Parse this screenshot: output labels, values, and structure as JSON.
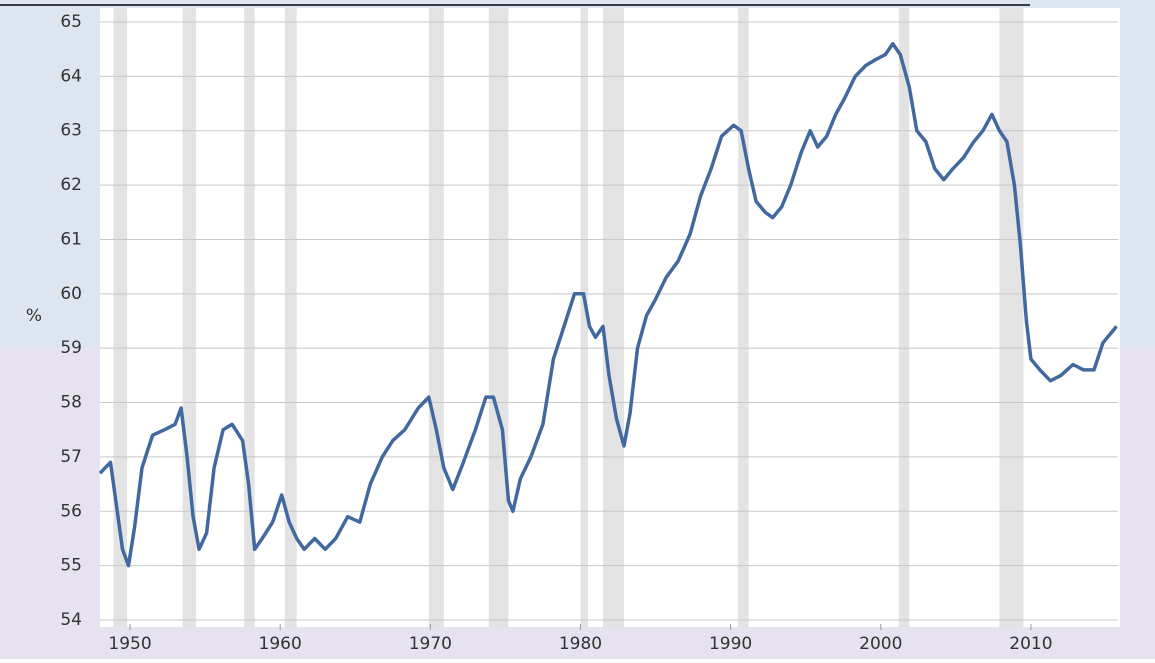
{
  "chart_data": {
    "type": "line",
    "y_label": "%",
    "xlim": [
      1948,
      2015.8
    ],
    "ylim": [
      54,
      65
    ],
    "xticks": [
      1950,
      1960,
      1970,
      1980,
      1990,
      2000,
      2010
    ],
    "yticks": [
      54,
      55,
      56,
      57,
      58,
      59,
      60,
      61,
      62,
      63,
      64,
      65
    ],
    "grid": true,
    "shaded_periods": [
      [
        1948.9,
        1949.8
      ],
      [
        1953.5,
        1954.4
      ],
      [
        1957.6,
        1958.3
      ],
      [
        1960.3,
        1961.1
      ],
      [
        1969.9,
        1970.9
      ],
      [
        1973.9,
        1975.2
      ],
      [
        1980.0,
        1980.5
      ],
      [
        1981.5,
        1982.9
      ],
      [
        1990.5,
        1991.2
      ],
      [
        2001.2,
        2001.9
      ],
      [
        2007.9,
        2009.5
      ]
    ],
    "shade_color": "#e3e3e3",
    "series": [
      {
        "color": "#4169a0",
        "x": [
          1948.0,
          1948.7,
          1949.0,
          1949.5,
          1949.9,
          1950.3,
          1950.8,
          1951.5,
          1952.3,
          1953.0,
          1953.4,
          1953.8,
          1954.2,
          1954.6,
          1955.1,
          1955.6,
          1956.2,
          1956.8,
          1957.5,
          1957.9,
          1958.3,
          1958.8,
          1959.5,
          1960.1,
          1960.6,
          1961.1,
          1961.6,
          1962.3,
          1963.0,
          1963.7,
          1964.5,
          1965.3,
          1966.0,
          1966.8,
          1967.5,
          1968.3,
          1969.2,
          1969.9,
          1970.4,
          1970.9,
          1971.5,
          1972.2,
          1973.0,
          1973.7,
          1974.2,
          1974.8,
          1975.2,
          1975.5,
          1976.0,
          1976.7,
          1977.5,
          1978.2,
          1978.9,
          1979.6,
          1980.2,
          1980.6,
          1981.0,
          1981.5,
          1981.9,
          1982.4,
          1982.9,
          1983.3,
          1983.8,
          1984.4,
          1985.0,
          1985.7,
          1986.5,
          1987.3,
          1988.0,
          1988.7,
          1989.4,
          1990.2,
          1990.7,
          1991.2,
          1991.7,
          1992.3,
          1992.8,
          1993.4,
          1994.0,
          1994.7,
          1995.3,
          1995.8,
          1996.4,
          1997.0,
          1997.6,
          1998.3,
          1999.0,
          1999.6,
          2000.3,
          2000.8,
          2001.3,
          2001.9,
          2002.4,
          2003.0,
          2003.6,
          2004.2,
          2004.8,
          2005.5,
          2006.2,
          2006.8,
          2007.4,
          2007.9,
          2008.4,
          2008.9,
          2009.3,
          2009.7,
          2010.0,
          2010.6,
          2011.3,
          2012.0,
          2012.8,
          2013.5,
          2014.2,
          2014.8,
          2015.4,
          2015.7
        ],
        "values": [
          56.7,
          56.9,
          56.3,
          55.3,
          55.0,
          55.7,
          56.8,
          57.4,
          57.5,
          57.6,
          57.9,
          57.0,
          55.9,
          55.3,
          55.6,
          56.8,
          57.5,
          57.6,
          57.3,
          56.5,
          55.3,
          55.5,
          55.8,
          56.3,
          55.8,
          55.5,
          55.3,
          55.5,
          55.3,
          55.5,
          55.9,
          55.8,
          56.5,
          57.0,
          57.3,
          57.5,
          57.9,
          58.1,
          57.5,
          56.8,
          56.4,
          56.9,
          57.5,
          58.1,
          58.1,
          57.5,
          56.2,
          56.0,
          56.6,
          57.0,
          57.6,
          58.8,
          59.4,
          60.0,
          60.0,
          59.4,
          59.2,
          59.4,
          58.5,
          57.7,
          57.2,
          57.8,
          59.0,
          59.6,
          59.9,
          60.3,
          60.6,
          61.1,
          61.8,
          62.3,
          62.9,
          63.1,
          63.0,
          62.3,
          61.7,
          61.5,
          61.4,
          61.6,
          62.0,
          62.6,
          63.0,
          62.7,
          62.9,
          63.3,
          63.6,
          64.0,
          64.2,
          64.3,
          64.4,
          64.6,
          64.4,
          63.8,
          63.0,
          62.8,
          62.3,
          62.1,
          62.3,
          62.5,
          62.8,
          63.0,
          63.3,
          63.0,
          62.8,
          62.0,
          60.9,
          59.5,
          58.8,
          58.6,
          58.4,
          58.5,
          58.7,
          58.6,
          58.6,
          59.1,
          59.3,
          59.4
        ]
      }
    ]
  }
}
